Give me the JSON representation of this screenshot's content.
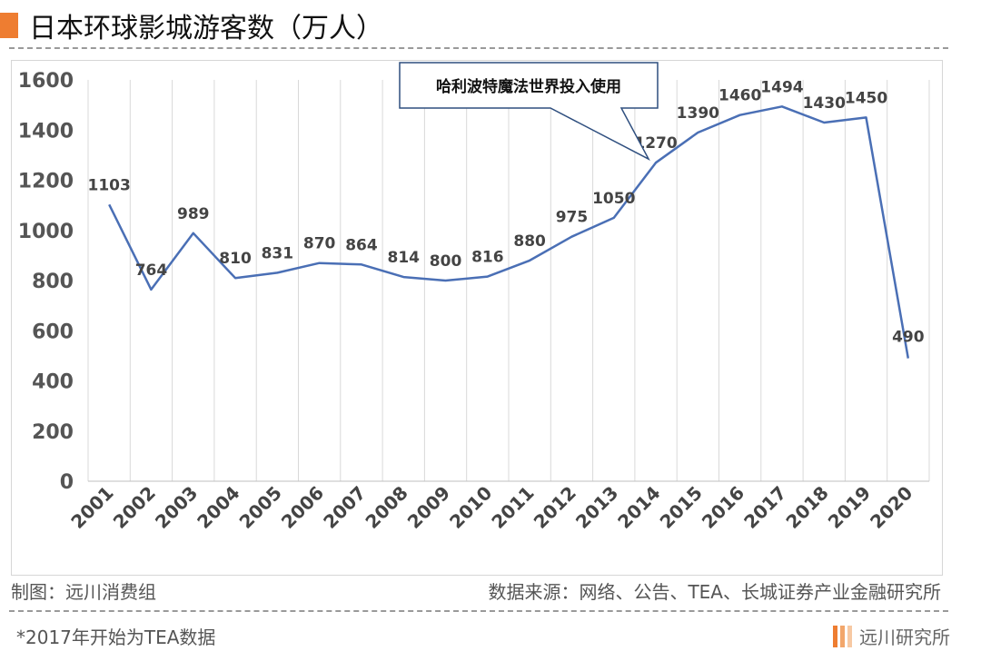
{
  "header": {
    "title": "日本环球影城游客数（万人）"
  },
  "footer": {
    "made_by": "制图：远川消费组",
    "source": "数据来源：网络、公告、TEA、长城证券产业金融研究所",
    "note": "*2017年开始为TEA数据",
    "logo_text": "远川研究所"
  },
  "colors": {
    "line": "#4a6fb5",
    "accent": "#ee7d31",
    "grid": "#d9d9d9"
  },
  "chart_data": {
    "type": "line",
    "title": "日本环球影城游客数（万人）",
    "xlabel": "",
    "ylabel": "",
    "ylim": [
      0,
      1600
    ],
    "yticks": [
      0,
      200,
      400,
      600,
      800,
      1000,
      1200,
      1400,
      1600
    ],
    "grid": "vertical",
    "legend": "none",
    "categories": [
      "2001",
      "2002",
      "2003",
      "2004",
      "2005",
      "2006",
      "2007",
      "2008",
      "2009",
      "2010",
      "2011",
      "2012",
      "2013",
      "2014",
      "2015",
      "2016",
      "2017",
      "2018",
      "2019",
      "2020"
    ],
    "values": [
      1103,
      764,
      989,
      810,
      831,
      870,
      864,
      814,
      800,
      816,
      880,
      975,
      1050,
      1270,
      1390,
      1460,
      1494,
      1430,
      1450,
      490
    ],
    "labels": [
      "1103",
      "764",
      "989",
      "810",
      "831",
      "870",
      "864",
      "814",
      "800",
      "816",
      "880",
      "975",
      "1050",
      "1270",
      "1390",
      "1460",
      "1494",
      "1430",
      "1450",
      "490"
    ],
    "annotation": {
      "text": "哈利波特魔法世界投入使用",
      "x": "2014",
      "y": 1270
    }
  }
}
